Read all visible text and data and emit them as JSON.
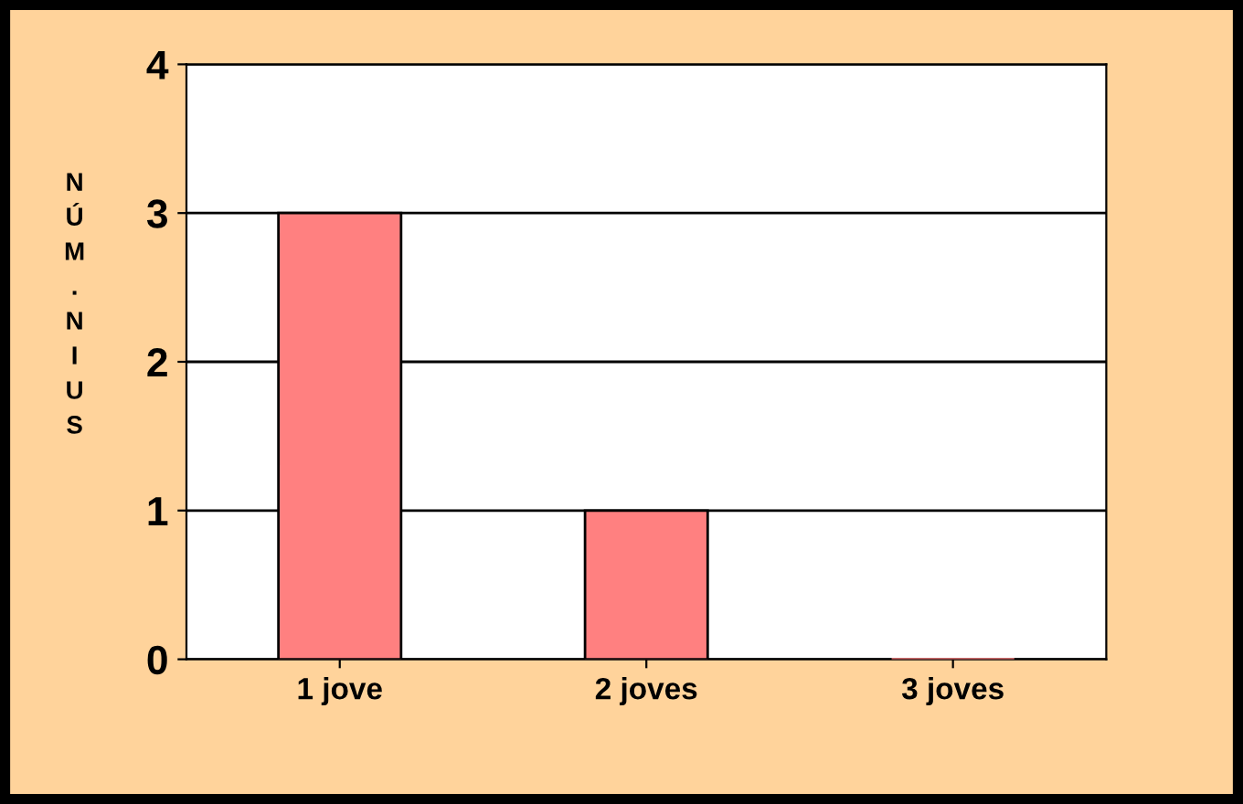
{
  "chart_data": {
    "type": "bar",
    "ylabel": "NÚM.NIUS",
    "categories": [
      "1 jove",
      "2 joves",
      "3 joves"
    ],
    "values": [
      3,
      1,
      0
    ],
    "color": "#ff8080",
    "ylim": [
      0,
      4
    ],
    "yticks": [
      0,
      1,
      2,
      3,
      4
    ],
    "grid": "y",
    "legend": false
  }
}
